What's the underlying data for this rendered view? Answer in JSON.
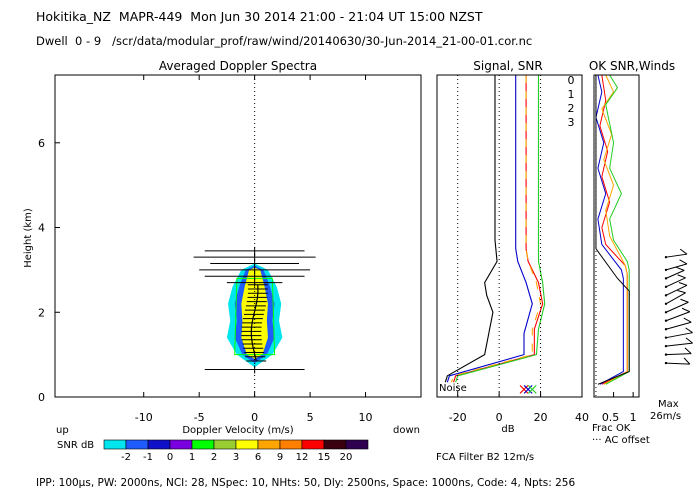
{
  "header": {
    "line1": "Hokitika_NZ  MAPR-449  Mon Jun 30 2014 21:00 - 21:04 UT 15:00 NZST",
    "line2": "Dwell  0 - 9   /scr/data/modular_prof/raw/wind/20140630/30-Jun-2014_21-00-01.cor.nc"
  },
  "footer": {
    "params": "IPP: 100μs, PW: 2000ns, NCI:  28, NSpec: 10, NHts: 50, Dly: 2500ns, Space: 1000ns, Code: 4, Npts: 256"
  },
  "colors": {
    "snr_scale": [
      "#00e5ee",
      "#1e5cff",
      "#1010c8",
      "#7a00e0",
      "#00ff00",
      "#9acd32",
      "#ffff00",
      "#ffa500",
      "#ff7f00",
      "#ff0000",
      "#3a0010",
      "#300050"
    ],
    "beam0": "#ff0000",
    "beam1": "#ffa500",
    "beam2": "#22cc22",
    "beam3": "#0000cc"
  },
  "chart_data": [
    {
      "type": "heatmap",
      "title": "Averaged Doppler Spectra",
      "xlabel": "Doppler Velocity (m/s)",
      "ylabel": "Height (km)",
      "xlim": [
        -18,
        15
      ],
      "ylim": [
        0,
        7.6
      ],
      "xticks": [
        -10,
        -5,
        0,
        5,
        10
      ],
      "yticks": [
        0,
        2,
        4,
        6
      ],
      "left_text": "up",
      "right_text": "down",
      "colorbar": {
        "label": "SNR dB",
        "ticks": [
          "-2",
          "-1",
          "0",
          "1",
          "2",
          "3",
          "6",
          "9",
          "12",
          "15",
          "20"
        ]
      },
      "spectrum_profile": [
        {
          "h": 3.0,
          "halfwidth": [
            1.2,
            0.8,
            0.5
          ]
        },
        {
          "h": 2.6,
          "halfwidth": [
            2.0,
            1.4,
            0.9
          ]
        },
        {
          "h": 2.2,
          "halfwidth": [
            2.4,
            1.8,
            1.2
          ]
        },
        {
          "h": 1.8,
          "halfwidth": [
            2.2,
            1.6,
            1.1
          ]
        },
        {
          "h": 1.4,
          "halfwidth": [
            2.5,
            1.8,
            1.2
          ]
        },
        {
          "h": 1.0,
          "halfwidth": [
            1.6,
            1.1,
            0.7
          ]
        }
      ],
      "mean_velocity_bars": [
        {
          "h": 3.45,
          "halfwidth": 4.5
        },
        {
          "h": 3.3,
          "halfwidth": 5.5
        },
        {
          "h": 3.15,
          "halfwidth": 4.0
        },
        {
          "h": 3.0,
          "halfwidth": 5.0
        },
        {
          "h": 2.85,
          "halfwidth": 4.5
        },
        {
          "h": 2.7,
          "halfwidth": 2.5
        },
        {
          "h": 0.65,
          "halfwidth": 4.5
        }
      ]
    },
    {
      "type": "line",
      "title": "Signal, SNR",
      "xlabel": "dB",
      "xlim": [
        -30,
        40
      ],
      "xticks": [
        -20,
        0,
        20,
        40
      ],
      "noise_label": "Noise",
      "legend": [
        "0",
        "1",
        "2",
        "3"
      ],
      "series": [
        {
          "name": "noise",
          "points": [
            [
              -2,
              7.6
            ],
            [
              -2,
              3.7
            ],
            [
              -1,
              3.2
            ],
            [
              -7,
              2.7
            ],
            [
              -6,
              2.4
            ],
            [
              -3,
              2.0
            ],
            [
              -5,
              1.5
            ],
            [
              -7,
              1.0
            ],
            [
              -25,
              0.5
            ],
            [
              -26,
              0.35
            ]
          ]
        },
        {
          "name": "0",
          "points": [
            [
              13,
              7.6
            ],
            [
              13,
              3.5
            ],
            [
              14,
              3.2
            ],
            [
              19,
              2.7
            ],
            [
              21,
              2.2
            ],
            [
              17,
              1.6
            ],
            [
              17,
              1.0
            ],
            [
              -21,
              0.5
            ],
            [
              -22,
              0.35
            ]
          ]
        },
        {
          "name": "1",
          "points": [
            [
              13,
              7.6
            ],
            [
              13,
              3.5
            ],
            [
              14,
              3.2
            ],
            [
              18,
              2.7
            ],
            [
              20,
              2.2
            ],
            [
              16,
              1.6
            ],
            [
              16,
              1.0
            ],
            [
              -22,
              0.5
            ],
            [
              -23,
              0.35
            ]
          ]
        },
        {
          "name": "2",
          "points": [
            [
              19,
              7.6
            ],
            [
              19,
              3.5
            ],
            [
              19,
              3.2
            ],
            [
              21,
              2.7
            ],
            [
              22,
              2.2
            ],
            [
              19,
              1.6
            ],
            [
              18,
              1.0
            ],
            [
              -20,
              0.5
            ],
            [
              -21,
              0.35
            ]
          ]
        },
        {
          "name": "3",
          "points": [
            [
              8,
              7.6
            ],
            [
              8,
              3.5
            ],
            [
              9,
              3.2
            ],
            [
              13,
              2.7
            ],
            [
              16,
              2.2
            ],
            [
              12,
              1.5
            ],
            [
              12,
              1.0
            ],
            [
              -24,
              0.5
            ],
            [
              -25,
              0.35
            ]
          ]
        }
      ],
      "markers": [
        {
          "name": "0",
          "x": 12,
          "y": 0.18
        },
        {
          "name": "3",
          "x": 14,
          "y": 0.18
        },
        {
          "name": "2",
          "x": 16,
          "y": 0.18
        }
      ]
    },
    {
      "type": "line",
      "title": "OK SNR,Winds",
      "xlabel": "Frac OK",
      "xlim": [
        0,
        1.15
      ],
      "xticks": [
        "0.5",
        "1"
      ],
      "ac_label": "AC offset",
      "max_label": "Max",
      "max_value": "26m/s",
      "series": [
        {
          "name": "0",
          "points": [
            [
              0.2,
              7.6
            ],
            [
              0.3,
              7.0
            ],
            [
              0.15,
              6.4
            ],
            [
              0.35,
              5.8
            ],
            [
              0.2,
              5.2
            ],
            [
              0.4,
              4.6
            ],
            [
              0.2,
              4.0
            ],
            [
              0.3,
              3.6
            ],
            [
              0.8,
              3.1
            ],
            [
              0.85,
              2.9
            ],
            [
              0.85,
              0.6
            ],
            [
              0.2,
              0.3
            ]
          ]
        },
        {
          "name": "1",
          "points": [
            [
              0.3,
              7.6
            ],
            [
              0.5,
              7.2
            ],
            [
              0.2,
              6.8
            ],
            [
              0.45,
              6.2
            ],
            [
              0.25,
              5.6
            ],
            [
              0.5,
              5.0
            ],
            [
              0.3,
              4.4
            ],
            [
              0.4,
              3.8
            ],
            [
              0.8,
              3.1
            ],
            [
              0.85,
              2.9
            ],
            [
              0.85,
              0.6
            ],
            [
              0.25,
              0.3
            ]
          ]
        },
        {
          "name": "2",
          "points": [
            [
              0.4,
              7.6
            ],
            [
              0.6,
              7.3
            ],
            [
              0.3,
              6.9
            ],
            [
              0.5,
              6.0
            ],
            [
              0.4,
              5.4
            ],
            [
              0.7,
              4.8
            ],
            [
              0.4,
              4.2
            ],
            [
              0.5,
              3.7
            ],
            [
              0.85,
              3.2
            ],
            [
              0.9,
              3.0
            ],
            [
              0.9,
              0.6
            ],
            [
              0.3,
              0.3
            ]
          ]
        },
        {
          "name": "3",
          "points": [
            [
              0.1,
              7.6
            ],
            [
              0.2,
              7.2
            ],
            [
              0.05,
              6.6
            ],
            [
              0.25,
              6.0
            ],
            [
              0.1,
              5.4
            ],
            [
              0.3,
              4.8
            ],
            [
              0.1,
              4.2
            ],
            [
              0.2,
              3.6
            ],
            [
              0.7,
              3.0
            ],
            [
              0.75,
              2.8
            ],
            [
              0.75,
              0.6
            ],
            [
              0.15,
              0.3
            ]
          ]
        },
        {
          "name": "black",
          "points": [
            [
              0.05,
              7.6
            ],
            [
              0.05,
              3.5
            ],
            [
              0.6,
              2.8
            ],
            [
              0.9,
              2.5
            ],
            [
              0.9,
              0.6
            ],
            [
              0.1,
              0.3
            ]
          ]
        }
      ],
      "barbs": [
        {
          "h": 3.3,
          "u": 30,
          "v": -6
        },
        {
          "h": 3.0,
          "u": 30,
          "v": -12
        },
        {
          "h": 2.8,
          "u": 26,
          "v": -16
        },
        {
          "h": 2.6,
          "u": 28,
          "v": -18
        },
        {
          "h": 2.4,
          "u": 30,
          "v": -20
        },
        {
          "h": 2.2,
          "u": 28,
          "v": -22
        },
        {
          "h": 2.0,
          "u": 32,
          "v": -20
        },
        {
          "h": 1.8,
          "u": 34,
          "v": -18
        },
        {
          "h": 1.6,
          "u": 36,
          "v": -14
        },
        {
          "h": 1.4,
          "u": 38,
          "v": -10
        },
        {
          "h": 1.2,
          "u": 38,
          "v": -6
        },
        {
          "h": 1.0,
          "u": 36,
          "v": -2
        },
        {
          "h": 0.8,
          "u": 34,
          "v": 2
        }
      ]
    }
  ],
  "fca": "FCA Filter B2 12m/s"
}
